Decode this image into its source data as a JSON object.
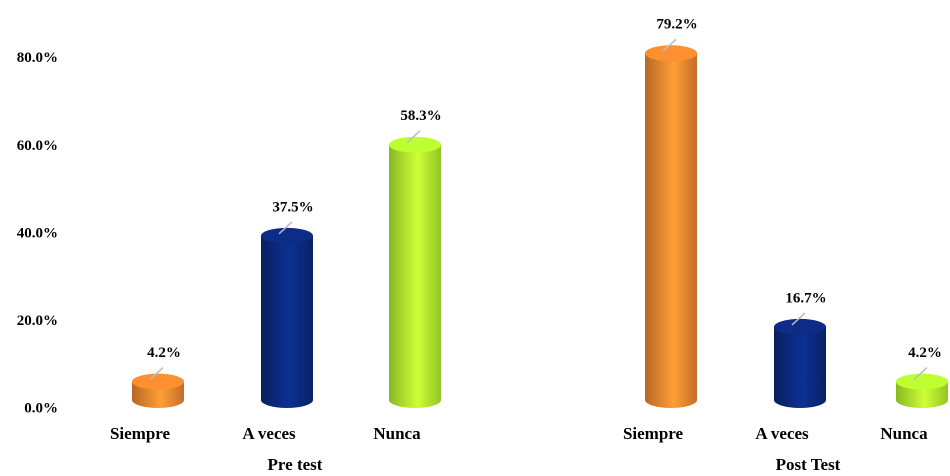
{
  "chart_data": {
    "type": "cylinder-bar",
    "categories": [
      "Pre test",
      "Post Test"
    ],
    "series": [
      {
        "name": "Siempre",
        "color": "#f5892f",
        "values": [
          4.2,
          79.2
        ],
        "value_labels": [
          "4.2%",
          "79.2%"
        ]
      },
      {
        "name": "A veces",
        "color": "#0b2a80",
        "values": [
          37.5,
          16.7
        ],
        "value_labels": [
          "37.5%",
          "16.7%"
        ]
      },
      {
        "name": "Nunca",
        "color": "#b4f52e",
        "values": [
          58.3,
          4.2
        ],
        "value_labels": [
          "58.3%",
          "4.2%"
        ]
      }
    ],
    "ylim": [
      0,
      90
    ],
    "yticks": [
      {
        "value": 0,
        "label": "0.0%"
      },
      {
        "value": 20,
        "label": "20.0%"
      },
      {
        "value": 40,
        "label": "40.0%"
      },
      {
        "value": 60,
        "label": "60.0%"
      },
      {
        "value": 80,
        "label": "80.0%"
      }
    ],
    "grid": false
  }
}
